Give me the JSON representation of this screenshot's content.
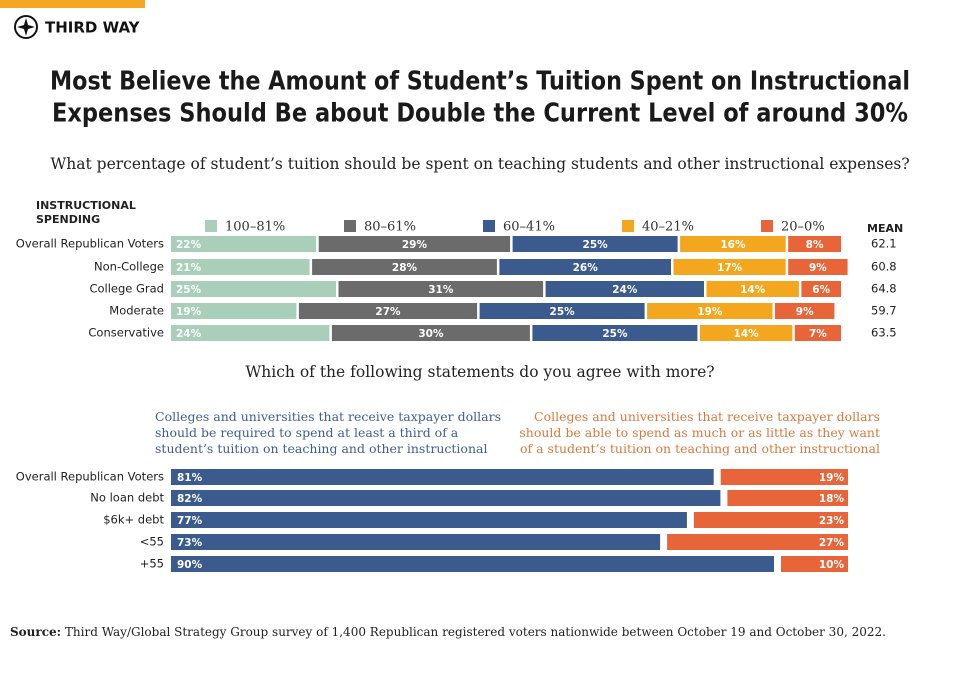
{
  "logo": "THIRD WAY",
  "title": [
    "Most Believe the Amount of Student’s Tuition Spent on Instructional",
    "Expenses Should Be about Double the Current Level of around 30%"
  ],
  "chart_data": [
    {
      "type": "stacked-bar",
      "question": "What percentage of student’s tuition should be spent on teaching students and other instructional expenses?",
      "ylabel": "INSTRUCTIONAL SPENDING",
      "categories": [
        "Overall Republican Voters",
        "Non-College",
        "College Grad",
        "Moderate",
        "Conservative"
      ],
      "series": [
        {
          "name": "100–81%",
          "color": "#a9cfba",
          "values": [
            22,
            21,
            25,
            19,
            24
          ],
          "value_labels": [
            "22%",
            "21%",
            "25%",
            "19%",
            "24%"
          ]
        },
        {
          "name": "80–61%",
          "color": "#6b6b6b",
          "values": [
            29,
            28,
            31,
            27,
            30
          ],
          "value_labels": [
            "29%",
            "28%",
            "31%",
            "27%",
            "30%"
          ]
        },
        {
          "name": "60–41%",
          "color": "#3b5b8e",
          "values": [
            25,
            26,
            24,
            25,
            25
          ],
          "value_labels": [
            "25%",
            "26%",
            "24%",
            "25%",
            "25%"
          ]
        },
        {
          "name": "40–21%",
          "color": "#f2a71e",
          "values": [
            16,
            17,
            14,
            19,
            14
          ],
          "value_labels": [
            "16%",
            "17%",
            "14%",
            "19%",
            "14%"
          ]
        },
        {
          "name": "20–0%",
          "color": "#e8653a",
          "values": [
            8,
            9,
            6,
            9,
            7
          ],
          "value_labels": [
            "8%",
            "9%",
            "6%",
            "9%",
            "7%"
          ]
        }
      ],
      "mean_label": "MEAN",
      "means": [
        62.1,
        60.8,
        64.8,
        59.7,
        63.5
      ]
    },
    {
      "type": "diverging-bar",
      "question": "Which of the following statements do you agree with more?",
      "categories": [
        "Overall Republican Voters",
        "No loan debt",
        "$6k+ debt",
        "<55",
        "+55"
      ],
      "series": [
        {
          "name": "Colleges and universities that receive taxpayer dollars should be required to spend at least a third of a student’s tuition on teaching and other instructional expenses",
          "color": "#3b5b8e",
          "values": [
            81,
            82,
            77,
            73,
            90
          ],
          "value_labels": [
            "81%",
            "82%",
            "77%",
            "73%",
            "90%"
          ]
        },
        {
          "name": "Colleges and universities that receive taxpayer dollars should be able to spend as much or as little as they want of a student’s tuition on teaching and other instructional expenses",
          "color": "#e8653a",
          "values": [
            19,
            18,
            23,
            27,
            10
          ],
          "value_labels": [
            "19%",
            "18%",
            "23%",
            "27%",
            "10%"
          ]
        }
      ]
    }
  ],
  "source_label": "Source:",
  "source": "Third Way/Global Strategy Group survey of 1,400 Republican registered voters nationwide between October 19 and October 30, 2022."
}
